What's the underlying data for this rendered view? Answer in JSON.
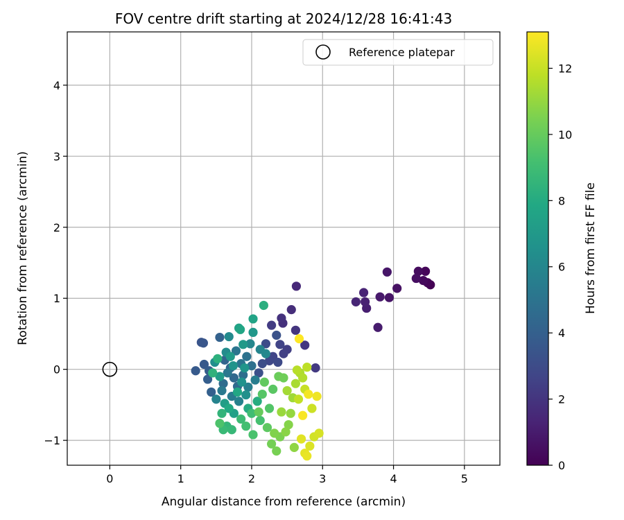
{
  "chart_data": {
    "type": "scatter",
    "title": "FOV centre drift starting at 2024/12/28 16:41:43",
    "xlabel": "Angular distance from reference (arcmin)",
    "ylabel": "Rotation from reference (arcmin)",
    "xlim": [
      -0.6,
      5.5
    ],
    "ylim": [
      -1.35,
      4.75
    ],
    "xticks": [
      0,
      1,
      2,
      3,
      4,
      5
    ],
    "yticks": [
      -1,
      0,
      1,
      2,
      3,
      4
    ],
    "grid": true,
    "legend": {
      "placement": "top-right",
      "entries": [
        {
          "label": "Reference platepar",
          "marker": "open-circle"
        }
      ]
    },
    "reference_point": {
      "x": 0,
      "y": 0
    },
    "colorbar": {
      "label": "Hours from first FF file",
      "range": [
        0,
        13.1
      ],
      "ticks": [
        0,
        2,
        4,
        6,
        8,
        10,
        12
      ],
      "colormap": "viridis"
    },
    "series": [
      {
        "columns": [
          "x",
          "y",
          "hours"
        ],
        "points": [
          [
            4.52,
            1.19,
            0.0
          ],
          [
            4.48,
            1.22,
            0.1
          ],
          [
            4.45,
            1.38,
            0.2
          ],
          [
            4.42,
            1.25,
            0.3
          ],
          [
            4.35,
            1.38,
            0.4
          ],
          [
            4.32,
            1.28,
            0.5
          ],
          [
            4.05,
            1.14,
            0.6
          ],
          [
            3.94,
            1.01,
            0.7
          ],
          [
            3.91,
            1.37,
            0.8
          ],
          [
            3.81,
            1.02,
            0.9
          ],
          [
            3.78,
            0.59,
            1.0
          ],
          [
            3.62,
            0.86,
            1.1
          ],
          [
            3.6,
            0.95,
            1.2
          ],
          [
            3.58,
            1.08,
            1.3
          ],
          [
            3.47,
            0.95,
            1.4
          ],
          [
            2.63,
            1.17,
            1.5
          ],
          [
            2.56,
            0.84,
            1.7
          ],
          [
            2.44,
            0.65,
            1.8
          ],
          [
            2.42,
            0.72,
            1.9
          ],
          [
            2.62,
            0.55,
            2.0
          ],
          [
            2.75,
            0.34,
            2.1
          ],
          [
            2.9,
            0.02,
            2.2
          ],
          [
            2.28,
            0.62,
            2.3
          ],
          [
            2.5,
            0.28,
            2.4
          ],
          [
            2.45,
            0.22,
            2.5
          ],
          [
            2.4,
            0.35,
            2.6
          ],
          [
            2.3,
            0.18,
            2.7
          ],
          [
            2.25,
            0.12,
            2.8
          ],
          [
            2.37,
            0.1,
            2.9
          ],
          [
            2.2,
            0.36,
            3.0
          ],
          [
            2.15,
            0.08,
            3.1
          ],
          [
            2.1,
            -0.05,
            3.2
          ],
          [
            2.35,
            0.48,
            3.3
          ],
          [
            1.29,
            0.38,
            3.4
          ],
          [
            1.32,
            0.37,
            3.5
          ],
          [
            1.33,
            0.07,
            3.6
          ],
          [
            1.21,
            -0.02,
            3.7
          ],
          [
            1.4,
            -0.02,
            3.8
          ],
          [
            1.38,
            -0.14,
            3.9
          ],
          [
            1.43,
            -0.32,
            4.0
          ],
          [
            1.55,
            0.45,
            4.1
          ],
          [
            1.62,
            0.13,
            4.2
          ],
          [
            1.7,
            0.02,
            4.3
          ],
          [
            1.75,
            -0.12,
            4.4
          ],
          [
            1.8,
            -0.24,
            4.5
          ],
          [
            1.6,
            -0.2,
            4.6
          ],
          [
            1.88,
            -0.08,
            4.7
          ],
          [
            2.0,
            0.05,
            4.8
          ],
          [
            1.93,
            0.18,
            4.9
          ],
          [
            1.85,
            0.08,
            5.0
          ],
          [
            1.78,
            0.26,
            5.1
          ],
          [
            1.66,
            -0.05,
            5.2
          ],
          [
            1.58,
            -0.3,
            5.3
          ],
          [
            1.72,
            -0.38,
            5.4
          ],
          [
            2.05,
            -0.15,
            5.5
          ],
          [
            1.95,
            -0.25,
            5.6
          ],
          [
            1.82,
            -0.45,
            5.7
          ],
          [
            1.5,
            -0.42,
            5.8
          ],
          [
            2.12,
            0.28,
            5.9
          ],
          [
            1.98,
            0.36,
            6.0
          ],
          [
            2.2,
            0.22,
            6.1
          ],
          [
            1.68,
            0.46,
            6.2
          ],
          [
            1.64,
            0.24,
            6.3
          ],
          [
            1.48,
            0.1,
            6.4
          ],
          [
            1.92,
            -0.36,
            6.5
          ],
          [
            1.86,
            -0.18,
            6.6
          ],
          [
            1.74,
            0.05,
            6.7
          ],
          [
            1.9,
            0.02,
            6.8
          ],
          [
            2.02,
            0.52,
            6.9
          ],
          [
            1.88,
            0.35,
            7.0
          ],
          [
            1.7,
            0.18,
            7.1
          ],
          [
            1.55,
            -0.1,
            7.2
          ],
          [
            1.62,
            -0.48,
            7.3
          ],
          [
            1.75,
            -0.62,
            7.4
          ],
          [
            1.82,
            0.58,
            7.5
          ],
          [
            2.02,
            0.71,
            7.6
          ],
          [
            1.84,
            0.56,
            7.7
          ],
          [
            1.8,
            -0.32,
            7.8
          ],
          [
            1.68,
            -0.55,
            7.9
          ],
          [
            1.95,
            -0.55,
            8.0
          ],
          [
            2.08,
            -0.45,
            8.1
          ],
          [
            2.17,
            0.9,
            8.2
          ],
          [
            1.52,
            0.15,
            8.3
          ],
          [
            1.45,
            -0.05,
            8.4
          ],
          [
            1.58,
            -0.62,
            8.5
          ],
          [
            1.65,
            -0.8,
            8.6
          ],
          [
            1.72,
            -0.85,
            8.7
          ],
          [
            1.6,
            -0.85,
            8.8
          ],
          [
            1.85,
            -0.7,
            8.9
          ],
          [
            2.0,
            -0.62,
            9.0
          ],
          [
            1.92,
            -0.8,
            9.1
          ],
          [
            2.12,
            -0.72,
            9.2
          ],
          [
            2.02,
            -0.92,
            9.3
          ],
          [
            1.55,
            -0.76,
            9.4
          ],
          [
            2.25,
            -0.55,
            9.5
          ],
          [
            2.15,
            -0.35,
            9.6
          ],
          [
            2.3,
            -0.28,
            9.7
          ],
          [
            2.22,
            -0.82,
            9.8
          ],
          [
            2.18,
            -0.18,
            9.9
          ],
          [
            2.1,
            -0.6,
            10.0
          ],
          [
            2.38,
            -0.1,
            10.1
          ],
          [
            2.45,
            -0.12,
            10.2
          ],
          [
            2.28,
            -1.05,
            10.3
          ],
          [
            2.35,
            -1.15,
            10.4
          ],
          [
            2.4,
            -0.95,
            10.5
          ],
          [
            2.32,
            -0.9,
            10.6
          ],
          [
            2.52,
            -0.78,
            10.7
          ],
          [
            2.48,
            -0.88,
            10.8
          ],
          [
            2.6,
            -1.1,
            10.9
          ],
          [
            2.55,
            -0.62,
            11.0
          ],
          [
            2.42,
            -0.6,
            11.1
          ],
          [
            2.58,
            -0.4,
            11.2
          ],
          [
            2.5,
            -0.3,
            11.3
          ],
          [
            2.62,
            -0.2,
            11.4
          ],
          [
            2.68,
            -0.05,
            11.5
          ],
          [
            2.72,
            -0.12,
            11.6
          ],
          [
            2.64,
            -0.01,
            11.7
          ],
          [
            2.78,
            0.03,
            11.8
          ],
          [
            2.66,
            -0.42,
            11.9
          ],
          [
            2.75,
            -0.28,
            12.0
          ],
          [
            2.85,
            -0.55,
            12.1
          ],
          [
            2.88,
            -0.95,
            12.2
          ],
          [
            2.95,
            -0.9,
            12.3
          ],
          [
            2.82,
            -1.08,
            12.4
          ],
          [
            2.7,
            -0.98,
            12.5
          ],
          [
            2.75,
            -1.18,
            12.6
          ],
          [
            2.78,
            -1.22,
            12.7
          ],
          [
            2.92,
            -0.38,
            12.8
          ],
          [
            2.8,
            -0.35,
            12.9
          ],
          [
            2.72,
            -0.65,
            13.0
          ],
          [
            2.67,
            0.43,
            13.1
          ]
        ]
      }
    ]
  }
}
